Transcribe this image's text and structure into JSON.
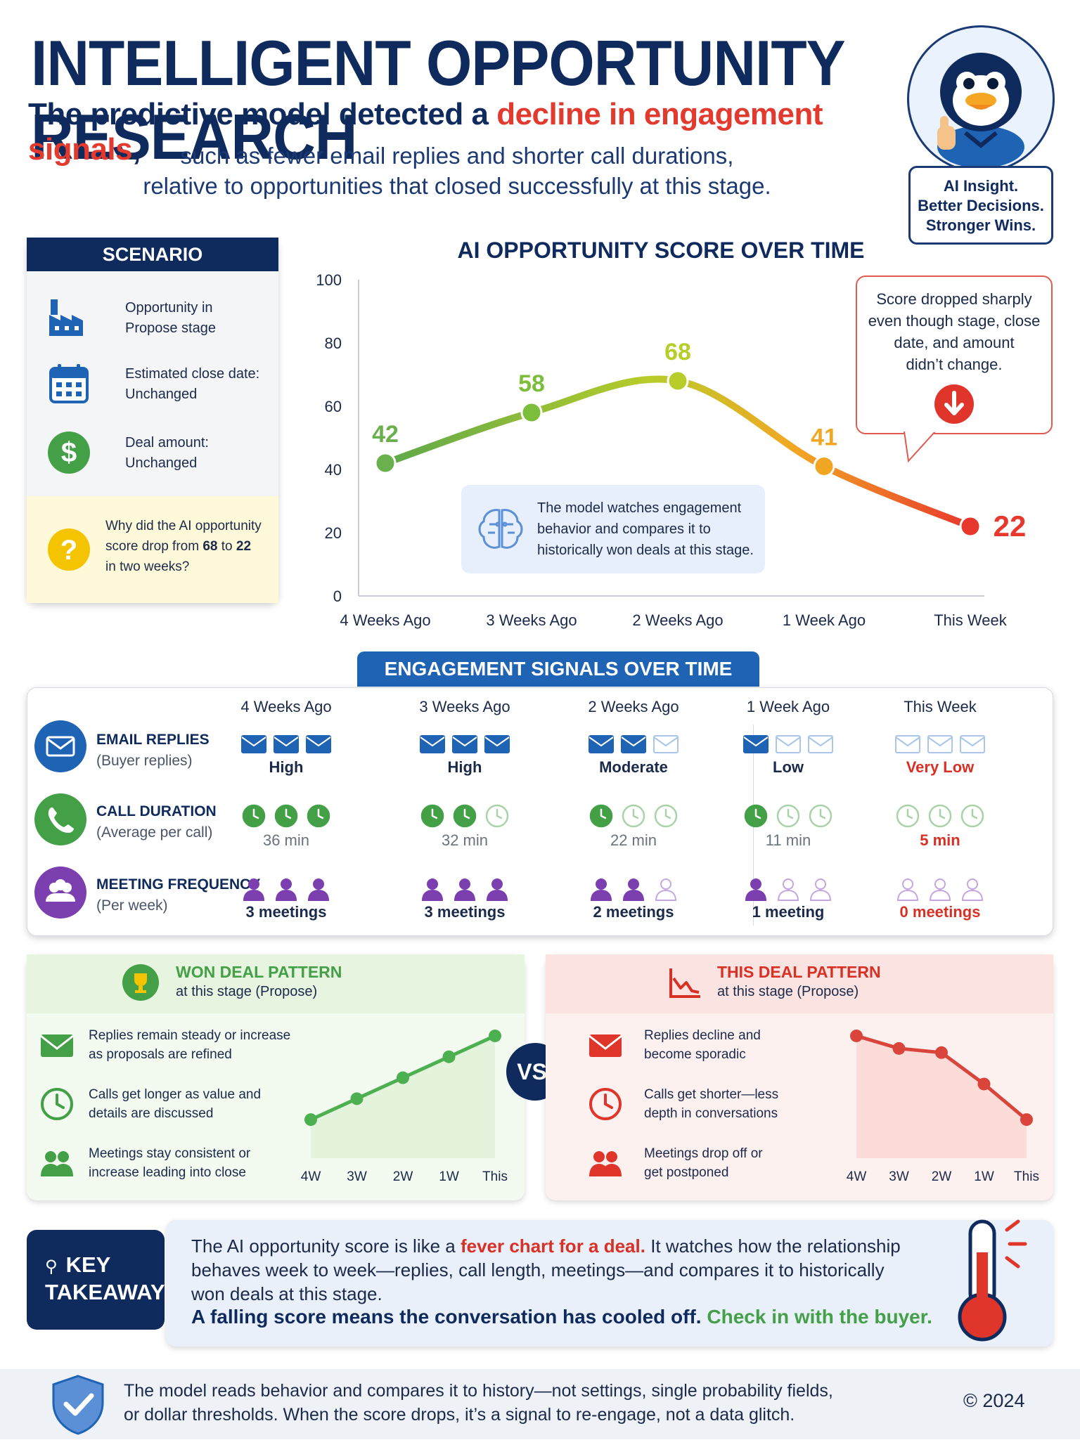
{
  "header": {
    "title": "INTELLIGENT OPPORTUNITY RESEARCH",
    "subtitle_a": "The predictive model detected a ",
    "subtitle_hl": "decline in engagement signals",
    "subtitle_b": ",",
    "subline_1": "such as fewer email replies and shorter call durations,",
    "subline_2": "relative to opportunities that closed successfully at this stage.",
    "badge_1": "AI Insight.",
    "badge_2": "Better Decisions.",
    "badge_3": "Stronger Wins."
  },
  "scenario": {
    "title": "SCENARIO",
    "items": [
      {
        "line1": "Opportunity in",
        "line2": "Propose stage",
        "icon": "factory-icon"
      },
      {
        "line1": "Estimated close date:",
        "line2": "Unchanged",
        "icon": "calendar-icon"
      },
      {
        "line1": "Deal amount:",
        "line2": "Unchanged",
        "icon": "dollar-icon"
      }
    ],
    "question_1": "Why did the AI opportunity",
    "question_2a": "score drop from ",
    "question_2b": "68",
    "question_2c": " to ",
    "question_2d": "22",
    "question_3": "in two weeks?"
  },
  "chart_data": {
    "type": "line",
    "title": "AI OPPORTUNITY SCORE OVER TIME",
    "categories": [
      "4 Weeks Ago",
      "3 Weeks Ago",
      "2 Weeks Ago",
      "1 Week Ago",
      "This Week"
    ],
    "values": [
      42,
      58,
      68,
      41,
      22
    ],
    "point_colors": [
      "#6ab04c",
      "#7cbd3c",
      "#b8cc2a",
      "#f2a724",
      "#e8372c"
    ],
    "yticks": [
      0,
      20,
      40,
      60,
      80,
      100
    ],
    "ylim": [
      0,
      100
    ],
    "callout_1": "Score dropped sharply",
    "callout_2": "even though stage, close",
    "callout_3": "date, and amount",
    "callout_4": "didn’t change.",
    "note_1": "The model watches engagement",
    "note_2": "behavior and compares it to",
    "note_3": "historically won deals at this stage."
  },
  "engagement": {
    "title": "ENGAGEMENT SIGNALS OVER TIME",
    "columns": [
      "4 Weeks Ago",
      "3 Weeks Ago",
      "2 Weeks Ago",
      "1 Week Ago",
      "This Week"
    ],
    "rows": [
      {
        "label": "EMAIL REPLIES",
        "sub": "(Buyer replies)",
        "filled": [
          3,
          3,
          2,
          1,
          0
        ],
        "values": [
          "High",
          "High",
          "Moderate",
          "Low",
          "Very Low"
        ]
      },
      {
        "label": "CALL DURATION",
        "sub": "(Average per call)",
        "filled": [
          3,
          2,
          1,
          1,
          0
        ],
        "values": [
          "36 min",
          "32 min",
          "22 min",
          "11 min",
          "5 min"
        ]
      },
      {
        "label": "MEETING FREQUENCY",
        "sub": "(Per week)",
        "filled": [
          3,
          3,
          2,
          1,
          0
        ],
        "values": [
          "3 meetings",
          "3 meetings",
          "2 meetings",
          "1 meeting",
          "0 meetings"
        ]
      }
    ]
  },
  "won": {
    "title": "WON DEAL PATTERN",
    "sub": "at this stage (Propose)",
    "items": [
      {
        "l1": "Replies remain steady or increase",
        "l2": "as proposals are refined"
      },
      {
        "l1": "Calls get longer as value and",
        "l2": "details are discussed"
      },
      {
        "l1": "Meetings stay consistent or",
        "l2": "increase leading into close"
      }
    ],
    "xlabels": [
      "4W",
      "3W",
      "2W",
      "1W",
      "This"
    ],
    "values": [
      1,
      2,
      3,
      4,
      5
    ]
  },
  "vs": "VS.",
  "this": {
    "title": "THIS DEAL PATTERN",
    "sub": "at this stage (Propose)",
    "items": [
      {
        "l1": "Replies decline and",
        "l2": "become sporadic"
      },
      {
        "l1": "Calls get shorter—less",
        "l2": "depth in conversations"
      },
      {
        "l1": "Meetings drop off or",
        "l2": "get postponed"
      }
    ],
    "xlabels": [
      "4W",
      "3W",
      "2W",
      "1W",
      "This"
    ],
    "values": [
      5,
      4.4,
      4.2,
      2.7,
      1
    ]
  },
  "takeaway": {
    "key_1": "KEY",
    "key_2": "TAKEAWAY",
    "t1a": "The AI opportunity score is like a ",
    "t1b": "fever chart for a deal.",
    "t1c": " It watches how the relationship behaves week to week—replies, call length, meetings—and compares it to historically won deals at this stage.",
    "t2a": "A falling score means the conversation has cooled off.",
    "t2b": " Check in with the buyer."
  },
  "footer": {
    "text_1": "The model reads behavior and compares it to history—not settings, single probability fields,",
    "text_2": "or dollar thresholds. When the score drops, it’s a signal to re-engage, not a data glitch.",
    "copyright": "© 2024"
  }
}
